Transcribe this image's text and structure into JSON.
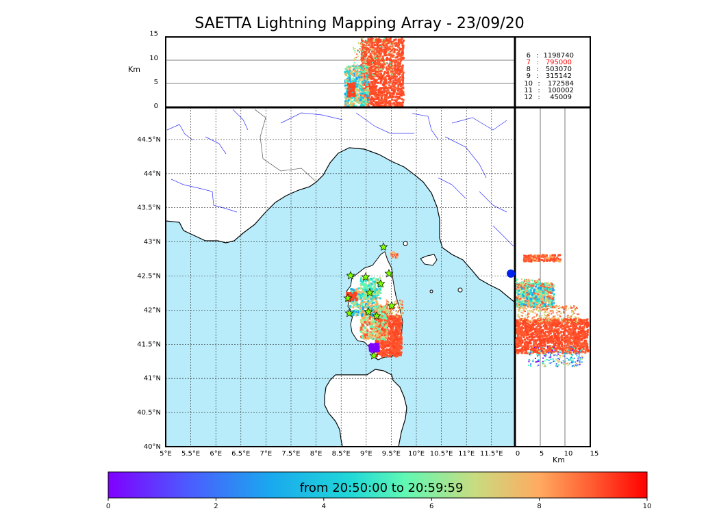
{
  "title": "SAETTA Lightning Mapping Array - 23/09/20",
  "altitude_panel": {
    "unit_label": "Km",
    "ticks": [
      "0",
      "5",
      "10",
      "15"
    ]
  },
  "side_panel": {
    "unit_label": "Km",
    "ticks": [
      "0",
      "5",
      "10",
      "15"
    ]
  },
  "map": {
    "lon_ticks": [
      "5°E",
      "5.5°E",
      "6°E",
      "6.5°E",
      "7°E",
      "7.5°E",
      "8°E",
      "8.5°E",
      "9°E",
      "9.5°E",
      "10°E",
      "10.5°E",
      "11°E",
      "11.5°E"
    ],
    "lat_ticks": [
      "40°N",
      "40.5°N",
      "41°N",
      "41.5°N",
      "42°N",
      "42.5°N",
      "43°N",
      "43.5°N",
      "44°N",
      "44.5°N"
    ],
    "sea_color": "#b8ecfa",
    "land_color": "#ffffff",
    "river_color": "#3030ff",
    "station_marker_color": "#7fff00"
  },
  "station_counts": {
    "header": "",
    "rows": [
      {
        "id": "6",
        "count": "1198740",
        "color": "#000000"
      },
      {
        "id": "7",
        "count": "795000",
        "color": "#ff0000"
      },
      {
        "id": "8",
        "count": "503070",
        "color": "#000000"
      },
      {
        "id": "9",
        "count": "315142",
        "color": "#000000"
      },
      {
        "id": "10",
        "count": "172584",
        "color": "#000000"
      },
      {
        "id": "11",
        "count": "100002",
        "color": "#000000"
      },
      {
        "id": "12",
        "count": "45009",
        "color": "#000000"
      }
    ]
  },
  "colorbar": {
    "label": "from 20:50:00 to 20:59:59",
    "ticks": [
      "0",
      "2",
      "4",
      "6",
      "8",
      "10"
    ],
    "colormap": "rainbow"
  }
}
